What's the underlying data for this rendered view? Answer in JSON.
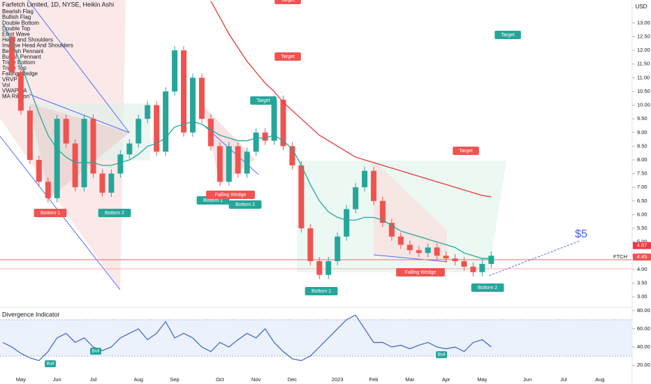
{
  "chart_data": {
    "type": "candlestick",
    "title": "Farfetch Limited, 1D, NYSE, Heikin Ashi",
    "indicators": [
      "Bearish Flag",
      "Bullish Flag",
      "Double Bottom",
      "Double Top",
      "Elliot Wave",
      "Head and Shoulders",
      "Inverse Head And Shoulders",
      "Bearish Pennant",
      "Bullish Pennant",
      "Triple Bottom",
      "Triple Top",
      "Falling Wedge",
      "VRVP",
      "Vol",
      "VWAP AA",
      "MA Ribbon"
    ],
    "currency": "USD",
    "categories": [
      null,
      null,
      "May",
      null,
      null,
      null,
      "Jun",
      null,
      null,
      null,
      "Jul",
      null,
      null,
      null,
      null,
      "Aug",
      null,
      null,
      null,
      "Sep",
      null,
      null,
      null,
      null,
      "Oct",
      null,
      null,
      null,
      "Nov",
      null,
      null,
      null,
      "Dec",
      null,
      null,
      null,
      null,
      "2023",
      null,
      null,
      null,
      "Feb",
      null,
      null,
      null,
      "Mar",
      null,
      null,
      null,
      "Apr",
      null,
      null,
      null,
      "May",
      null,
      null,
      null,
      null,
      "Jun",
      null,
      null,
      null,
      "Jul",
      null,
      null,
      null,
      "Aug",
      null,
      null,
      null
    ],
    "series": [
      {
        "up_color": "#26a69a",
        "down_color": "#ef5350",
        "values": [
          12.5,
          11.2,
          9.8,
          8.0,
          7.2,
          6.6,
          9.5,
          8.6,
          7.0,
          9.5,
          7.5,
          6.8,
          7.5,
          8.2,
          8.6,
          9.5,
          10.0,
          8.3,
          10.5,
          12.0,
          9.0,
          11.0,
          9.5,
          8.5,
          7.2,
          8.5,
          7.5,
          8.3,
          9.0,
          8.7,
          10.2,
          8.5,
          7.8,
          5.5,
          4.3,
          3.8,
          4.3,
          5.2,
          6.2,
          7.0,
          7.6,
          6.5,
          5.7,
          5.2,
          4.9,
          4.7,
          4.6,
          4.8,
          4.5,
          4.4,
          4.3,
          4.1,
          3.9,
          4.2,
          4.5,
          null,
          null,
          null,
          null,
          null,
          null,
          null,
          null,
          null,
          null,
          null,
          null,
          null,
          null,
          null
        ]
      }
    ],
    "overlays": [
      {
        "color": "#26a69a",
        "values": [
          13.0,
          12.3,
          11.5,
          10.6,
          9.7,
          8.9,
          8.4,
          8.1,
          7.9,
          7.9,
          7.9,
          7.8,
          7.8,
          7.9,
          8.0,
          8.2,
          8.5,
          8.6,
          8.8,
          9.2,
          9.3,
          9.4,
          9.3,
          9.1,
          8.9,
          8.8,
          8.7,
          8.7,
          8.8,
          8.8,
          8.9,
          8.7,
          8.4,
          7.8,
          7.1,
          6.5,
          6.1,
          5.9,
          5.8,
          5.8,
          5.9,
          5.9,
          5.8,
          5.6,
          5.4,
          5.3,
          5.2,
          5.1,
          5.0,
          4.9,
          4.8,
          4.6,
          4.5,
          4.4,
          4.4,
          null,
          null,
          null,
          null,
          null,
          null,
          null,
          null,
          null,
          null,
          null,
          null,
          null,
          null,
          null
        ]
      },
      {
        "color": "#e53935",
        "values": [
          null,
          null,
          null,
          null,
          null,
          null,
          null,
          null,
          null,
          null,
          null,
          null,
          null,
          null,
          null,
          null,
          null,
          null,
          null,
          null,
          null,
          null,
          null,
          13.8,
          13.2,
          12.6,
          12.1,
          11.6,
          11.2,
          10.8,
          10.5,
          10.1,
          9.8,
          9.5,
          9.2,
          8.9,
          8.7,
          8.5,
          8.3,
          8.1,
          8.0,
          7.9,
          7.8,
          7.7,
          7.6,
          7.5,
          7.4,
          7.3,
          7.2,
          7.1,
          7.0,
          6.9,
          6.8,
          6.7,
          6.65,
          null,
          null,
          null,
          null,
          null,
          null,
          null,
          null,
          null,
          null,
          null,
          null,
          null,
          null,
          null
        ]
      }
    ],
    "ylim": [
      2.67,
      13.84
    ],
    "yticks": [
      {
        "value": 3,
        "label": "3.00"
      },
      {
        "value": 3.5,
        "label": "3.50"
      },
      {
        "value": 4,
        "label": "4.00"
      },
      {
        "value": 4.5,
        "label": "4.50"
      },
      {
        "value": 5,
        "label": "5.00"
      },
      {
        "value": 5.5,
        "label": "5.50"
      },
      {
        "value": 6,
        "label": "6.00"
      },
      {
        "value": 6.5,
        "label": "6.50"
      },
      {
        "value": 7,
        "label": "7.00"
      },
      {
        "value": 7.5,
        "label": "7.50"
      },
      {
        "value": 8,
        "label": "8.00"
      },
      {
        "value": 8.5,
        "label": "8.50"
      },
      {
        "value": 9,
        "label": "9.00"
      },
      {
        "value": 9.5,
        "label": "9.50"
      },
      {
        "value": 10,
        "label": "10.00"
      },
      {
        "value": 10.5,
        "label": "10.50"
      },
      {
        "value": 11,
        "label": "11.00"
      },
      {
        "value": 11.5,
        "label": "11.50"
      },
      {
        "value": 12,
        "label": "12.00"
      },
      {
        "value": 12.5,
        "label": "12.50"
      },
      {
        "value": 13,
        "label": "13.00"
      }
    ],
    "price_labels": [
      {
        "value": 4.87,
        "label": "4.87"
      },
      {
        "value": 4.45,
        "label": "4.45"
      }
    ],
    "symbol": "FTCH",
    "annotations": [
      "Bottom 1",
      "Bottom 2",
      "Target",
      "Target",
      "Target",
      "Target",
      "Bottom 1",
      "Bottom 2",
      "Target",
      "Falling Wedge",
      "Bottom 1",
      "Falling Wedge",
      "Bottom 2",
      "$5"
    ],
    "lower_pane": {
      "title": "Divergence Indicator",
      "color": "#3c5fc8",
      "values": [
        45,
        40,
        33,
        28,
        25,
        35,
        50,
        55,
        45,
        50,
        40,
        36,
        40,
        50,
        55,
        60,
        48,
        55,
        68,
        50,
        55,
        50,
        40,
        35,
        45,
        40,
        48,
        55,
        50,
        60,
        45,
        35,
        27,
        25,
        30,
        40,
        50,
        60,
        70,
        75,
        60,
        45,
        45,
        40,
        42,
        38,
        42,
        45,
        40,
        38,
        40,
        35,
        45,
        48,
        40,
        null,
        null,
        null,
        null,
        null,
        null,
        null,
        null,
        null,
        null,
        null,
        null,
        null,
        null,
        null
      ],
      "ylim": [
        3.1,
        83.8
      ],
      "yticks": [
        {
          "value": 80,
          "label": "80.00"
        },
        {
          "value": 60,
          "label": "60.00"
        },
        {
          "value": 40,
          "label": "40.00"
        },
        {
          "value": 20,
          "label": "20.00"
        }
      ],
      "band": [
        30,
        70
      ],
      "signals": [
        "Bull",
        "Bull",
        "Bull"
      ]
    }
  }
}
